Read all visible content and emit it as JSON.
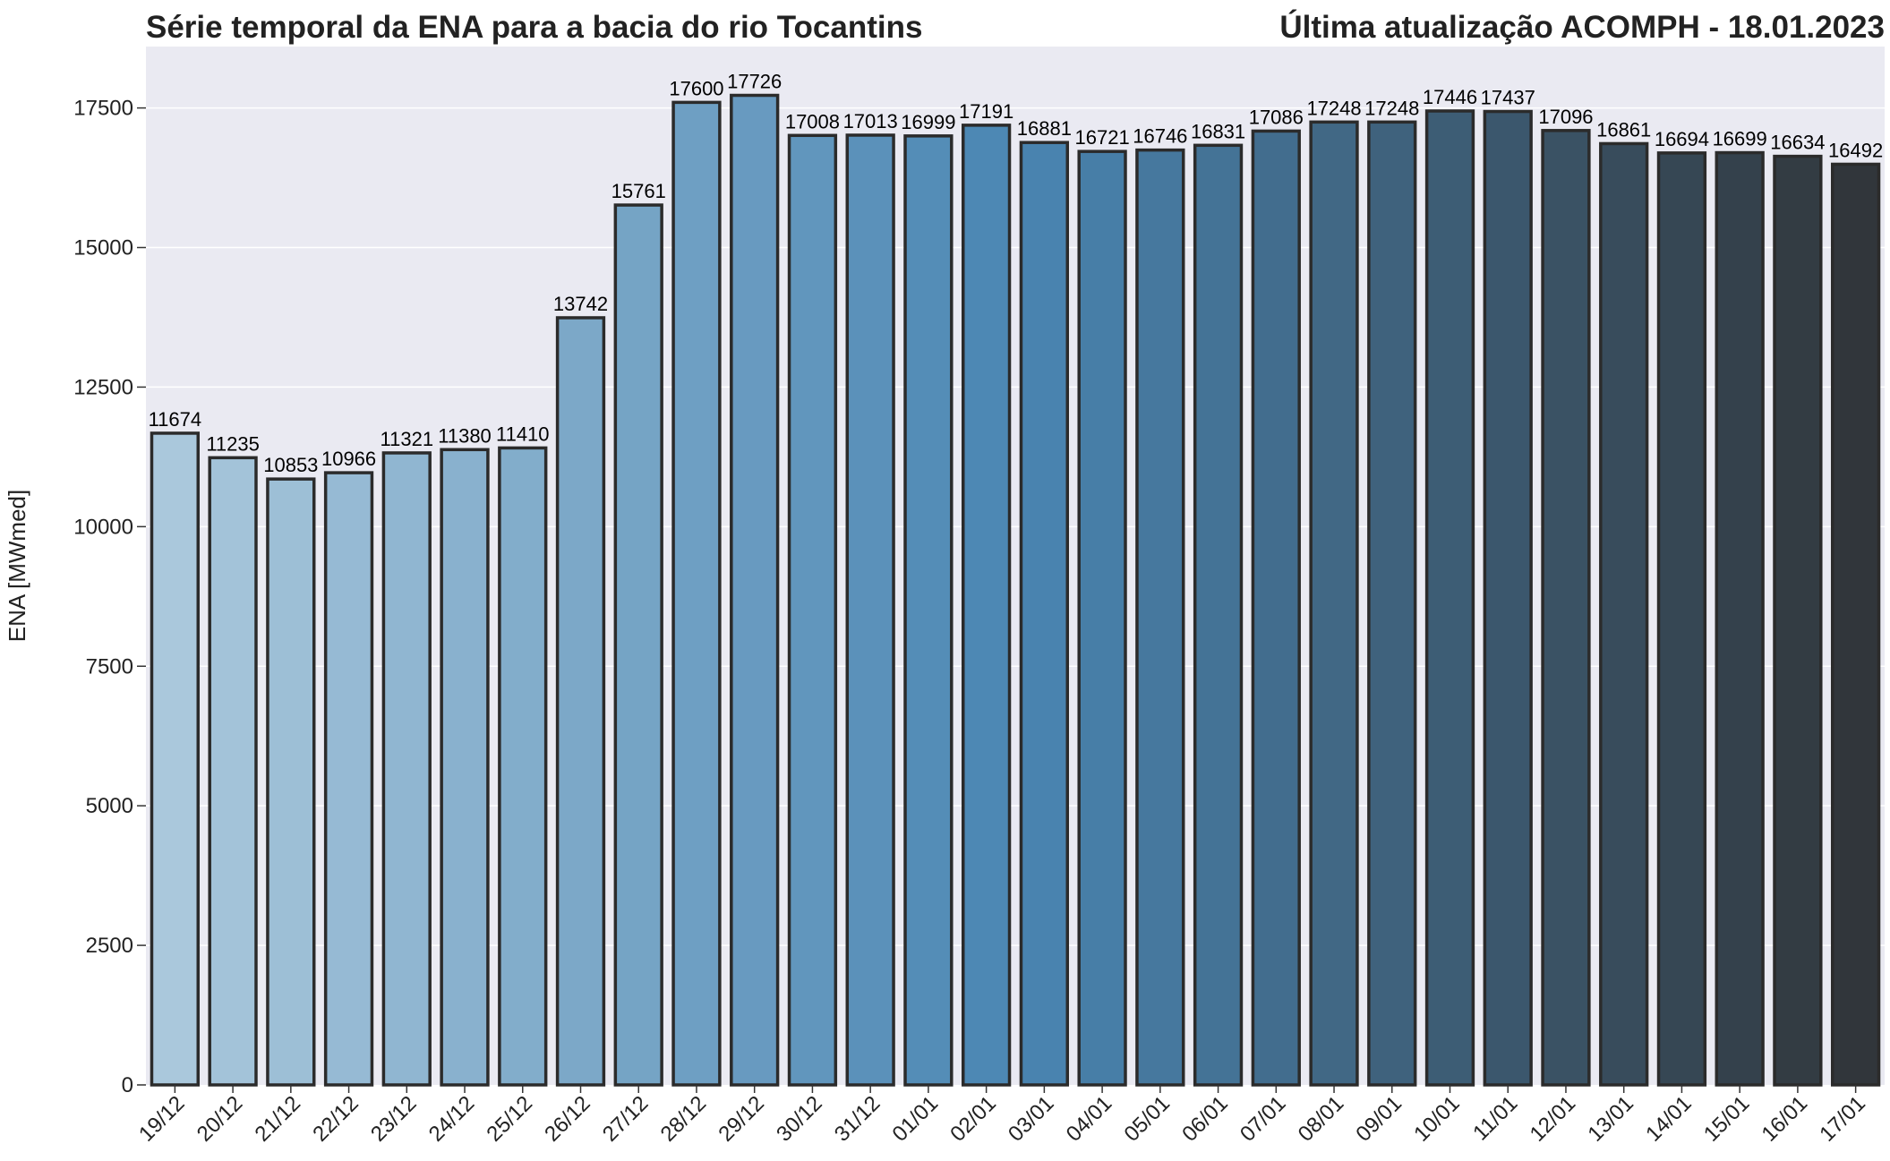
{
  "chart_data": {
    "type": "bar",
    "title": "Série temporal da ENA para a bacia do rio Tocantins",
    "subtitle": "Última atualização ACOMPH - 18.01.2023",
    "xlabel": "",
    "ylabel": "ENA [MWmed]",
    "ylim": [
      0,
      18600
    ],
    "yticks": [
      0,
      2500,
      5000,
      7500,
      10000,
      12500,
      15000,
      17500
    ],
    "grid": true,
    "legend": "none",
    "color_start": "#aac8dc",
    "color_mid": "#4a86b3",
    "color_end": "#31363b",
    "edge_color": "#2b2b2b",
    "plot_background": "#eaeaf2",
    "categories": [
      "19/12",
      "20/12",
      "21/12",
      "22/12",
      "23/12",
      "24/12",
      "25/12",
      "26/12",
      "27/12",
      "28/12",
      "29/12",
      "30/12",
      "31/12",
      "01/01",
      "02/01",
      "03/01",
      "04/01",
      "05/01",
      "06/01",
      "07/01",
      "08/01",
      "09/01",
      "10/01",
      "11/01",
      "12/01",
      "13/01",
      "14/01",
      "15/01",
      "16/01",
      "17/01"
    ],
    "values": [
      11674,
      11235,
      10853,
      10966,
      11321,
      11380,
      11410,
      13742,
      15761,
      17600,
      17726,
      17008,
      17013,
      16999,
      17191,
      16881,
      16721,
      16746,
      16831,
      17086,
      17248,
      17248,
      17446,
      17437,
      17096,
      16861,
      16694,
      16699,
      16634,
      16492
    ]
  }
}
